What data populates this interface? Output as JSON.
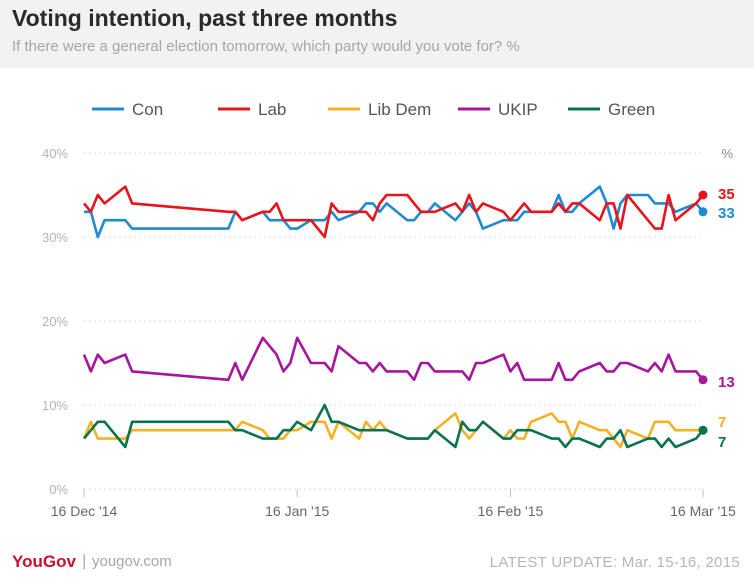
{
  "header": {
    "title": "Voting intention, past three months",
    "subtitle": "If there were a general election tomorrow, which party would you vote for? %"
  },
  "footer": {
    "brand": "YouGov",
    "separator": "|",
    "site": "yougov.com",
    "update": "LATEST UPDATE: Mar. 15-16, 2015"
  },
  "chart_data": {
    "type": "line",
    "title": "Voting intention, past three months",
    "subtitle": "If there were a general election tomorrow, which party would you vote for? %",
    "unit_label": "%",
    "ylim": [
      0,
      40
    ],
    "yticks": [
      0,
      10,
      20,
      30,
      40
    ],
    "ytick_labels": [
      "0%",
      "10%",
      "20%",
      "30%",
      "40%"
    ],
    "xlim": [
      "2014-12-16",
      "2015-03-16"
    ],
    "xticks": [
      "2014-12-16",
      "2015-01-16",
      "2015-02-16",
      "2015-03-16"
    ],
    "xtick_labels": [
      "16 Dec '14",
      "16 Jan '15",
      "16 Feb '15",
      "16 Mar '15"
    ],
    "grid": "horizontal",
    "legend_position": "top",
    "x": [
      "2014-12-16",
      "2014-12-17",
      "2014-12-18",
      "2014-12-19",
      "2014-12-22",
      "2014-12-23",
      "2015-01-06",
      "2015-01-07",
      "2015-01-08",
      "2015-01-11",
      "2015-01-12",
      "2015-01-13",
      "2015-01-14",
      "2015-01-15",
      "2015-01-16",
      "2015-01-18",
      "2015-01-20",
      "2015-01-21",
      "2015-01-22",
      "2015-01-25",
      "2015-01-26",
      "2015-01-27",
      "2015-01-28",
      "2015-01-29",
      "2015-02-01",
      "2015-02-02",
      "2015-02-03",
      "2015-02-04",
      "2015-02-05",
      "2015-02-08",
      "2015-02-09",
      "2015-02-10",
      "2015-02-11",
      "2015-02-12",
      "2015-02-15",
      "2015-02-16",
      "2015-02-17",
      "2015-02-18",
      "2015-02-19",
      "2015-02-22",
      "2015-02-23",
      "2015-02-24",
      "2015-02-25",
      "2015-02-26",
      "2015-03-01",
      "2015-03-02",
      "2015-03-03",
      "2015-03-04",
      "2015-03-05",
      "2015-03-08",
      "2015-03-09",
      "2015-03-10",
      "2015-03-11",
      "2015-03-12",
      "2015-03-15",
      "2015-03-16"
    ],
    "series": [
      {
        "name": "Con",
        "color": "#1f8ad4",
        "end_label": "33",
        "values": [
          33,
          33,
          30,
          32,
          32,
          31,
          31,
          33,
          32,
          33,
          32,
          32,
          32,
          31,
          31,
          32,
          32,
          33,
          32,
          33,
          34,
          34,
          33,
          34,
          32,
          32,
          33,
          33,
          34,
          32,
          33,
          34,
          33,
          31,
          32,
          32,
          32,
          33,
          33,
          33,
          35,
          33,
          33,
          34,
          36,
          34,
          31,
          34,
          35,
          35,
          34,
          34,
          34,
          33,
          34,
          33
        ]
      },
      {
        "name": "Lab",
        "color": "#e8141b",
        "end_label": "35",
        "values": [
          34,
          33,
          35,
          34,
          36,
          34,
          33,
          33,
          32,
          33,
          33,
          34,
          32,
          32,
          32,
          32,
          30,
          34,
          33,
          33,
          33,
          32,
          34,
          35,
          35,
          34,
          33,
          33,
          33,
          34,
          33,
          35,
          33,
          34,
          33,
          32,
          33,
          34,
          33,
          33,
          34,
          33,
          34,
          34,
          32,
          34,
          34,
          31,
          35,
          32,
          31,
          31,
          35,
          32,
          34,
          35
        ]
      },
      {
        "name": "Lib Dem",
        "color": "#f6b024",
        "end_label": "7",
        "values": [
          6,
          8,
          6,
          6,
          6,
          7,
          7,
          7,
          8,
          7,
          6,
          6,
          6,
          7,
          7,
          8,
          8,
          6,
          8,
          6,
          8,
          7,
          8,
          7,
          6,
          6,
          6,
          6,
          7,
          9,
          7,
          6,
          7,
          8,
          6,
          7,
          6,
          6,
          8,
          9,
          8,
          8,
          6,
          8,
          7,
          7,
          6,
          5,
          7,
          6,
          8,
          8,
          8,
          7,
          7,
          7
        ]
      },
      {
        "name": "UKIP",
        "color": "#a4179c",
        "end_label": "13",
        "values": [
          16,
          14,
          16,
          15,
          16,
          14,
          13,
          15,
          13,
          18,
          17,
          16,
          14,
          15,
          18,
          15,
          15,
          14,
          17,
          15,
          15,
          14,
          15,
          14,
          14,
          13,
          15,
          15,
          14,
          14,
          14,
          13,
          15,
          15,
          16,
          14,
          15,
          13,
          13,
          13,
          15,
          13,
          13,
          14,
          15,
          14,
          14,
          15,
          15,
          14,
          15,
          14,
          16,
          14,
          14,
          13
        ]
      },
      {
        "name": "Green",
        "color": "#08734f",
        "end_label": "7",
        "values": [
          6,
          7,
          8,
          8,
          5,
          8,
          8,
          7,
          7,
          6,
          6,
          6,
          7,
          7,
          8,
          7,
          10,
          8,
          8,
          7,
          7,
          7,
          7,
          7,
          6,
          6,
          6,
          6,
          7,
          5,
          8,
          7,
          7,
          8,
          6,
          6,
          7,
          7,
          7,
          6,
          6,
          5,
          6,
          6,
          5,
          6,
          6,
          7,
          5,
          6,
          6,
          5,
          6,
          5,
          6,
          7
        ]
      }
    ]
  }
}
